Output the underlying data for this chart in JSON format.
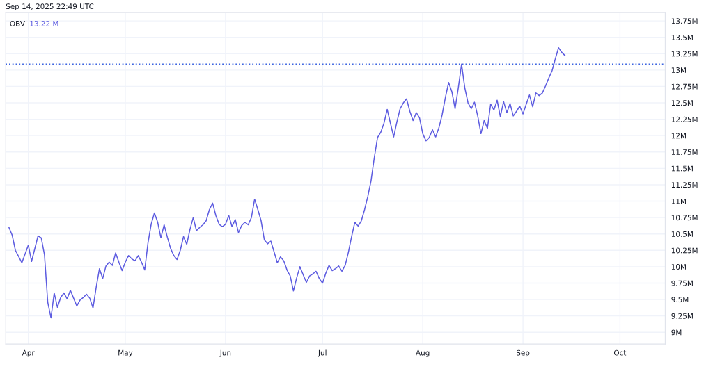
{
  "chart_data": {
    "type": "line",
    "title": "OBV",
    "annotations": [
      "Sep 14, 2025 22:49 UTC",
      "13.22 M"
    ],
    "x": [
      "2025-03-26",
      "2025-03-27",
      "2025-03-28",
      "2025-03-30",
      "2025-04-01",
      "2025-04-02",
      "2025-04-04",
      "2025-04-05",
      "2025-04-06",
      "2025-04-07",
      "2025-04-08",
      "2025-04-09",
      "2025-04-10",
      "2025-04-11",
      "2025-04-12",
      "2025-04-13",
      "2025-04-14",
      "2025-04-15",
      "2025-04-16",
      "2025-04-17",
      "2025-04-18",
      "2025-04-19",
      "2025-04-20",
      "2025-04-21",
      "2025-04-22",
      "2025-04-23",
      "2025-04-24",
      "2025-04-25",
      "2025-04-26",
      "2025-04-27",
      "2025-04-28",
      "2025-04-29",
      "2025-04-30",
      "2025-05-01",
      "2025-05-02",
      "2025-05-03",
      "2025-05-04",
      "2025-05-05",
      "2025-05-06",
      "2025-05-07",
      "2025-05-08",
      "2025-05-09",
      "2025-05-10",
      "2025-05-11",
      "2025-05-12",
      "2025-05-13",
      "2025-05-14",
      "2025-05-15",
      "2025-05-16",
      "2025-05-17",
      "2025-05-18",
      "2025-05-19",
      "2025-05-20",
      "2025-05-21",
      "2025-05-22",
      "2025-05-23",
      "2025-05-24",
      "2025-05-25",
      "2025-05-26",
      "2025-05-27",
      "2025-05-28",
      "2025-05-29",
      "2025-05-30",
      "2025-05-31",
      "2025-06-01",
      "2025-06-02",
      "2025-06-03",
      "2025-06-04",
      "2025-06-05",
      "2025-06-06",
      "2025-06-07",
      "2025-06-08",
      "2025-06-09",
      "2025-06-10",
      "2025-06-11",
      "2025-06-12",
      "2025-06-13",
      "2025-06-14",
      "2025-06-15",
      "2025-06-16",
      "2025-06-17",
      "2025-06-18",
      "2025-06-19",
      "2025-06-20",
      "2025-06-21",
      "2025-06-22",
      "2025-06-23",
      "2025-06-24",
      "2025-06-25",
      "2025-06-26",
      "2025-06-27",
      "2025-06-28",
      "2025-06-29",
      "2025-06-30",
      "2025-07-01",
      "2025-07-02",
      "2025-07-03",
      "2025-07-04",
      "2025-07-05",
      "2025-07-06",
      "2025-07-07",
      "2025-07-08",
      "2025-07-09",
      "2025-07-10",
      "2025-07-11",
      "2025-07-12",
      "2025-07-13",
      "2025-07-14",
      "2025-07-15",
      "2025-07-16",
      "2025-07-17",
      "2025-07-18",
      "2025-07-19",
      "2025-07-20",
      "2025-07-21",
      "2025-07-22",
      "2025-07-23",
      "2025-07-24",
      "2025-07-25",
      "2025-07-26",
      "2025-07-27",
      "2025-07-28",
      "2025-07-29",
      "2025-07-30",
      "2025-07-31",
      "2025-08-01",
      "2025-08-02",
      "2025-08-03",
      "2025-08-04",
      "2025-08-05",
      "2025-08-06",
      "2025-08-07",
      "2025-08-08",
      "2025-08-09",
      "2025-08-10",
      "2025-08-11",
      "2025-08-12",
      "2025-08-13",
      "2025-08-14",
      "2025-08-15",
      "2025-08-16",
      "2025-08-17",
      "2025-08-18",
      "2025-08-19",
      "2025-08-20",
      "2025-08-21",
      "2025-08-22",
      "2025-08-23",
      "2025-08-24",
      "2025-08-25",
      "2025-08-26",
      "2025-08-27",
      "2025-08-28",
      "2025-08-29",
      "2025-08-30",
      "2025-08-31",
      "2025-09-01",
      "2025-09-02",
      "2025-09-03",
      "2025-09-04",
      "2025-09-05",
      "2025-09-06",
      "2025-09-07",
      "2025-09-08",
      "2025-09-09",
      "2025-09-10",
      "2025-09-11",
      "2025-09-12",
      "2025-09-13",
      "2025-09-14"
    ],
    "series": [
      {
        "color": "#5d5ce0",
        "values": [
          10.6,
          10.48,
          10.25,
          10.06,
          10.33,
          10.08,
          10.47,
          10.44,
          10.18,
          9.46,
          9.22,
          9.6,
          9.38,
          9.53,
          9.6,
          9.51,
          9.64,
          9.52,
          9.4,
          9.49,
          9.53,
          9.58,
          9.52,
          9.37,
          9.69,
          9.97,
          9.82,
          10.01,
          10.07,
          10.02,
          10.21,
          10.07,
          9.94,
          10.07,
          10.17,
          10.12,
          10.09,
          10.17,
          10.07,
          9.95,
          10.36,
          10.65,
          10.82,
          10.68,
          10.44,
          10.64,
          10.45,
          10.28,
          10.17,
          10.11,
          10.25,
          10.46,
          10.34,
          10.57,
          10.75,
          10.55,
          10.6,
          10.64,
          10.7,
          10.87,
          10.97,
          10.78,
          10.65,
          10.61,
          10.65,
          10.78,
          10.61,
          10.72,
          10.52,
          10.63,
          10.68,
          10.64,
          10.75,
          11.03,
          10.87,
          10.7,
          10.41,
          10.35,
          10.39,
          10.23,
          10.06,
          10.15,
          10.09,
          9.95,
          9.86,
          9.63,
          9.83,
          10.0,
          9.88,
          9.76,
          9.86,
          9.89,
          9.93,
          9.82,
          9.75,
          9.9,
          10.02,
          9.94,
          9.97,
          10.01,
          9.93,
          10.02,
          10.22,
          10.46,
          10.68,
          10.62,
          10.7,
          10.87,
          11.07,
          11.31,
          11.66,
          11.97,
          12.05,
          12.19,
          12.4,
          12.19,
          11.98,
          12.21,
          12.41,
          12.5,
          12.56,
          12.37,
          12.23,
          12.35,
          12.27,
          12.03,
          11.92,
          11.97,
          12.09,
          11.98,
          12.12,
          12.32,
          12.58,
          12.81,
          12.67,
          12.41,
          12.73,
          13.09,
          12.73,
          12.5,
          12.41,
          12.51,
          12.3,
          12.03,
          12.23,
          12.11,
          12.48,
          12.39,
          12.54,
          12.29,
          12.52,
          12.35,
          12.49,
          12.3,
          12.37,
          12.45,
          12.33,
          12.48,
          12.62,
          12.44,
          12.65,
          12.61,
          12.65,
          12.76,
          12.88,
          12.99,
          13.17,
          13.34,
          13.27,
          13.22
        ]
      }
    ],
    "ref_lines": [
      {
        "axis": "y",
        "value": 13.09,
        "color": "#3b63e0",
        "line_style": "dotted"
      }
    ],
    "xlim": [
      "2025-03-25",
      "2025-10-15"
    ],
    "xticks": [
      {
        "value": "2025-04-01",
        "label": "Apr"
      },
      {
        "value": "2025-05-01",
        "label": "May"
      },
      {
        "value": "2025-06-01",
        "label": "Jun"
      },
      {
        "value": "2025-07-01",
        "label": "Jul"
      },
      {
        "value": "2025-08-01",
        "label": "Aug"
      },
      {
        "value": "2025-09-01",
        "label": "Sep"
      },
      {
        "value": "2025-10-01",
        "label": "Oct"
      }
    ],
    "ylim": [
      8.82,
      13.88
    ],
    "yticks": [
      {
        "value": 9,
        "label": "9M"
      },
      {
        "value": 9.25,
        "label": "9.25M"
      },
      {
        "value": 9.5,
        "label": "9.5M"
      },
      {
        "value": 9.75,
        "label": "9.75M"
      },
      {
        "value": 10,
        "label": "10M"
      },
      {
        "value": 10.25,
        "label": "10.25M"
      },
      {
        "value": 10.5,
        "label": "10.5M"
      },
      {
        "value": 10.75,
        "label": "10.75M"
      },
      {
        "value": 11,
        "label": "11M"
      },
      {
        "value": 11.25,
        "label": "11.25M"
      },
      {
        "value": 11.5,
        "label": "11.5M"
      },
      {
        "value": 11.75,
        "label": "11.75M"
      },
      {
        "value": 12,
        "label": "12M"
      },
      {
        "value": 12.25,
        "label": "12.25M"
      },
      {
        "value": 12.5,
        "label": "12.5M"
      },
      {
        "value": 12.75,
        "label": "12.75M"
      },
      {
        "value": 13,
        "label": "13M"
      },
      {
        "value": 13.25,
        "label": "13.25M"
      },
      {
        "value": 13.5,
        "label": "13.5M"
      },
      {
        "value": 13.75,
        "label": "13.75M"
      }
    ],
    "grid": true,
    "marker": "none",
    "line_style": "solid"
  }
}
